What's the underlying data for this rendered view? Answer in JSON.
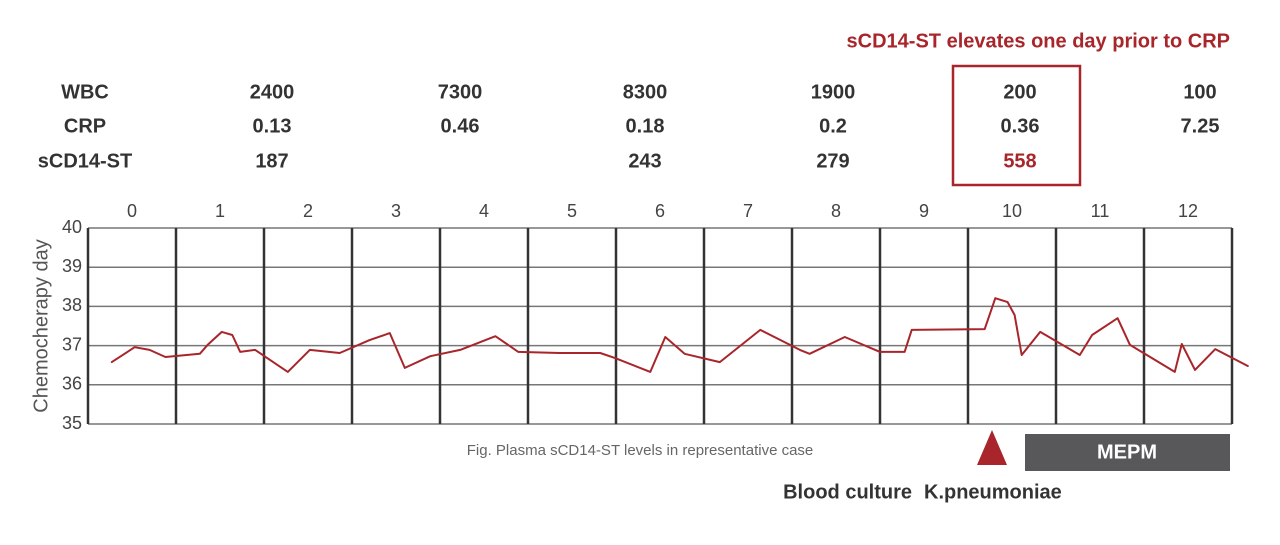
{
  "chart_data": {
    "type": "line",
    "annotation": "sCD14-ST elevates one day prior to CRP",
    "table": {
      "rows": [
        {
          "label": "WBC",
          "values": [
            2400,
            7300,
            8300,
            1900,
            200,
            100
          ]
        },
        {
          "label": "CRP",
          "values": [
            0.13,
            0.46,
            0.18,
            0.2,
            0.36,
            7.25
          ]
        },
        {
          "label": "sCD14-ST",
          "values": [
            187,
            null,
            243,
            279,
            558,
            null
          ]
        }
      ]
    },
    "ylabel": "Chemocherapy day",
    "caption": "Fig. Plasma sCD14-ST levels in representative case",
    "markers": {
      "triangle": "Blood culture",
      "organism": "K.pneumoniae",
      "bar": "MEPM"
    },
    "xlim": [
      -0.5,
      12.5
    ],
    "xticks": [
      0,
      1,
      2,
      3,
      4,
      5,
      6,
      7,
      8,
      9,
      10,
      11,
      12
    ],
    "ylim": [
      35,
      40
    ],
    "yticks": [
      35,
      36,
      37,
      38,
      39,
      40
    ],
    "grid": true,
    "series": [
      {
        "color": "#a8262b",
        "x": [
          -0.23,
          0.03,
          0.2,
          0.38,
          0.77,
          0.86,
          1.02,
          1.14,
          1.23,
          1.4,
          1.77,
          2.02,
          2.36,
          2.7,
          2.93,
          3.1,
          3.39,
          3.73,
          4.13,
          4.39,
          4.86,
          5.32,
          5.49,
          5.89,
          6.06,
          6.28,
          6.68,
          7.14,
          7.59,
          7.7,
          8.1,
          8.5,
          8.78,
          8.86,
          9.69,
          9.81,
          9.95,
          10.03,
          10.11,
          10.32,
          10.77,
          10.91,
          11.2,
          11.34,
          11.85,
          11.93,
          12.08,
          12.31,
          12.68
        ],
        "values": [
          36.58,
          36.96,
          36.89,
          36.71,
          36.79,
          37.02,
          37.35,
          37.27,
          36.84,
          36.89,
          36.33,
          36.89,
          36.81,
          37.14,
          37.32,
          36.43,
          36.73,
          36.89,
          37.24,
          36.84,
          36.81,
          36.81,
          36.68,
          36.33,
          37.22,
          36.79,
          36.58,
          37.4,
          36.89,
          36.79,
          37.22,
          36.84,
          36.84,
          37.4,
          37.42,
          38.21,
          38.11,
          37.78,
          36.76,
          37.35,
          36.76,
          37.27,
          37.7,
          37.02,
          36.33,
          37.04,
          36.38,
          36.91,
          36.48
        ]
      }
    ]
  }
}
